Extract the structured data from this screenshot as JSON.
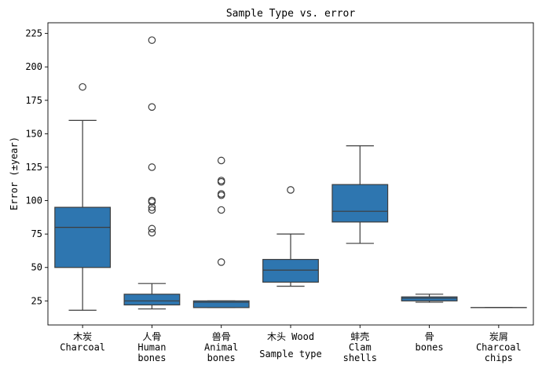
{
  "chart_data": {
    "type": "box",
    "title": "Sample Type vs. error",
    "xlabel": "Sample type",
    "ylabel": "Error (±year)",
    "ylim": [
      7,
      233
    ],
    "yticks": [
      25,
      50,
      75,
      100,
      125,
      150,
      175,
      200,
      225
    ],
    "grid": false,
    "box_color": "#2e76b0",
    "line_color": "#3d3d3d",
    "categories": [
      {
        "label": [
          "木炭",
          "Charcoal"
        ],
        "whisker_low": 18,
        "q1": 50,
        "median": 80,
        "q3": 95,
        "whisker_high": 160,
        "outliers": [
          185
        ]
      },
      {
        "label": [
          "人骨",
          "Human",
          "bones"
        ],
        "whisker_low": 19,
        "q1": 22,
        "median": 25,
        "q3": 30,
        "whisker_high": 38,
        "outliers": [
          76,
          79,
          93,
          95,
          99,
          100,
          125,
          170,
          220
        ]
      },
      {
        "label": [
          "兽骨",
          "Animal",
          "bones"
        ],
        "whisker_low": 20,
        "q1": 20,
        "median": 24,
        "q3": 25,
        "whisker_high": 25,
        "outliers": [
          54,
          93,
          104,
          105,
          114,
          115,
          130
        ]
      },
      {
        "label": [
          "木头 Wood"
        ],
        "whisker_low": 36,
        "q1": 39,
        "median": 48,
        "q3": 56,
        "whisker_high": 75,
        "outliers": [
          108
        ]
      },
      {
        "label": [
          "蚌壳",
          "Clam",
          "shells"
        ],
        "whisker_low": 68,
        "q1": 84,
        "median": 92,
        "q3": 112,
        "whisker_high": 141,
        "outliers": []
      },
      {
        "label": [
          "骨",
          "bones"
        ],
        "whisker_low": 24,
        "q1": 25,
        "median": 27,
        "q3": 28,
        "whisker_high": 30,
        "outliers": []
      },
      {
        "label": [
          "炭屑",
          "Charcoal",
          "chips"
        ],
        "whisker_low": 20,
        "q1": 20,
        "median": 20,
        "q3": 20,
        "whisker_high": 20,
        "outliers": []
      }
    ]
  }
}
